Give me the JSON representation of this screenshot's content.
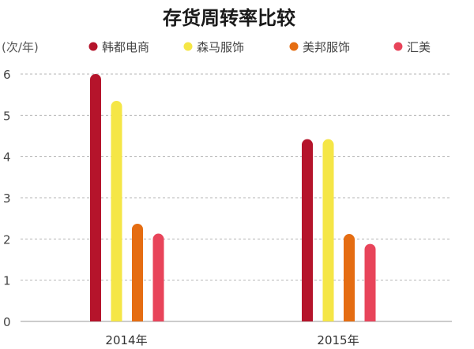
{
  "chart_data": {
    "type": "bar",
    "title": "存货周转率比较",
    "ylabel": "(次/年)",
    "xlabel": "",
    "categories": [
      "2014年",
      "2015年"
    ],
    "ylim": [
      0,
      6
    ],
    "yticks": [
      0,
      1,
      2,
      3,
      4,
      5,
      6
    ],
    "grid": true,
    "legend_position": "top",
    "series": [
      {
        "name": "韩都电商",
        "color": "#b5142b",
        "values": [
          6.0,
          4.42
        ]
      },
      {
        "name": "森马服饰",
        "color": "#f5e646",
        "values": [
          5.35,
          4.42
        ]
      },
      {
        "name": "美邦服饰",
        "color": "#e56d12",
        "values": [
          2.37,
          2.12
        ]
      },
      {
        "name": "汇美",
        "color": "#e8445a",
        "values": [
          2.13,
          1.88
        ]
      }
    ]
  }
}
